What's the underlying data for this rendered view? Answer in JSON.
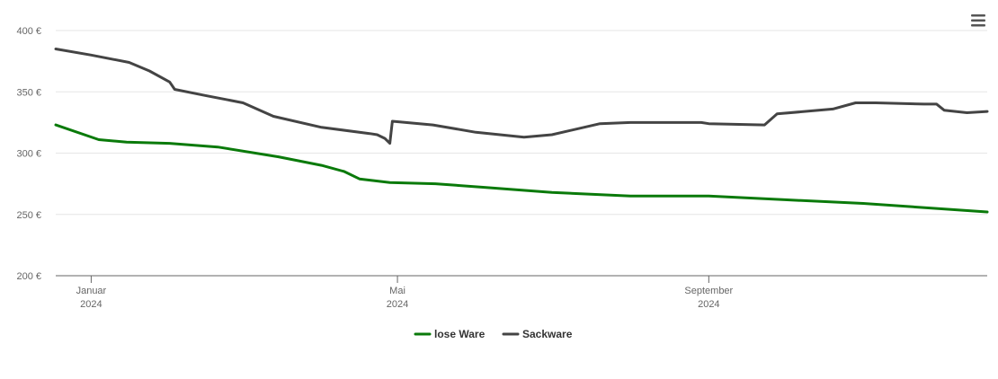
{
  "chart_data": {
    "type": "line",
    "title": "",
    "xlabel": "",
    "ylabel": "",
    "ylim": [
      200,
      400
    ],
    "y_ticks": [
      {
        "value": 200,
        "label": "200 €"
      },
      {
        "value": 250,
        "label": "250 €"
      },
      {
        "value": 300,
        "label": "300 €"
      },
      {
        "value": 350,
        "label": "350 €"
      },
      {
        "value": 400,
        "label": "400 €"
      }
    ],
    "x_range": [
      "2023-12-18",
      "2024-12-20"
    ],
    "x_ticks": [
      {
        "date": "2024-01-01",
        "label": "Januar",
        "year": "2024"
      },
      {
        "date": "2024-05-01",
        "label": "Mai",
        "year": "2024"
      },
      {
        "date": "2024-09-01",
        "label": "September",
        "year": "2024"
      }
    ],
    "grid": "horizontal",
    "legend_position": "bottom-center",
    "series": [
      {
        "name": "lose Ware",
        "color": "#0a7a0a",
        "points": [
          [
            "2023-12-18",
            323
          ],
          [
            "2024-01-04",
            311
          ],
          [
            "2024-01-15",
            309
          ],
          [
            "2024-02-01",
            308
          ],
          [
            "2024-02-20",
            305
          ],
          [
            "2024-03-15",
            297
          ],
          [
            "2024-04-01",
            290
          ],
          [
            "2024-04-10",
            285
          ],
          [
            "2024-04-16",
            279
          ],
          [
            "2024-04-28",
            276
          ],
          [
            "2024-05-16",
            275
          ],
          [
            "2024-06-05",
            272
          ],
          [
            "2024-07-01",
            268
          ],
          [
            "2024-08-01",
            265
          ],
          [
            "2024-09-01",
            265
          ],
          [
            "2024-10-01",
            262
          ],
          [
            "2024-11-01",
            259
          ],
          [
            "2024-12-20",
            252
          ]
        ]
      },
      {
        "name": "Sackware",
        "color": "#444444",
        "points": [
          [
            "2023-12-18",
            385
          ],
          [
            "2024-01-01",
            380
          ],
          [
            "2024-01-16",
            374
          ],
          [
            "2024-01-24",
            367
          ],
          [
            "2024-02-01",
            358
          ],
          [
            "2024-02-03",
            352
          ],
          [
            "2024-02-15",
            347
          ],
          [
            "2024-03-01",
            341
          ],
          [
            "2024-03-13",
            330
          ],
          [
            "2024-04-01",
            321
          ],
          [
            "2024-04-20",
            316
          ],
          [
            "2024-04-23",
            315
          ],
          [
            "2024-04-26",
            312
          ],
          [
            "2024-04-28",
            308
          ],
          [
            "2024-04-29",
            326
          ],
          [
            "2024-05-15",
            323
          ],
          [
            "2024-06-01",
            317
          ],
          [
            "2024-06-20",
            313
          ],
          [
            "2024-07-01",
            315
          ],
          [
            "2024-07-20",
            324
          ],
          [
            "2024-08-01",
            325
          ],
          [
            "2024-08-29",
            325
          ],
          [
            "2024-09-01",
            324
          ],
          [
            "2024-09-23",
            323
          ],
          [
            "2024-09-28",
            332
          ],
          [
            "2024-10-20",
            336
          ],
          [
            "2024-10-29",
            341
          ],
          [
            "2024-11-06",
            341
          ],
          [
            "2024-11-25",
            340
          ],
          [
            "2024-11-30",
            340
          ],
          [
            "2024-12-03",
            335
          ],
          [
            "2024-12-12",
            333
          ],
          [
            "2024-12-20",
            334
          ]
        ]
      }
    ]
  },
  "menu": {
    "icon": "hamburger-menu-icon"
  }
}
